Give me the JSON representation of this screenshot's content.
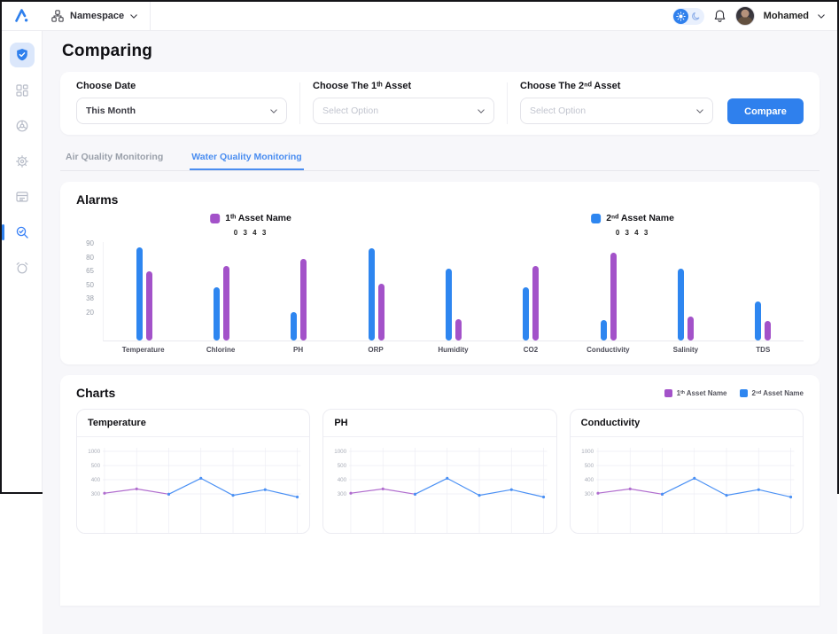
{
  "topbar": {
    "namespace_label": "Namespace",
    "user_name": "Mohamed"
  },
  "sidebar": {
    "items": [
      {
        "name": "security",
        "state": "highlighted"
      },
      {
        "name": "dashboard",
        "state": "default"
      },
      {
        "name": "hub",
        "state": "default"
      },
      {
        "name": "settings",
        "state": "default"
      },
      {
        "name": "assets",
        "state": "default"
      },
      {
        "name": "comparing",
        "state": "current"
      },
      {
        "name": "alarms",
        "state": "default"
      }
    ]
  },
  "page": {
    "title": "Comparing"
  },
  "form": {
    "date": {
      "label": "Choose Date",
      "value": "This Month"
    },
    "asset1": {
      "label": "Choose The 1ᵗʰ Asset",
      "placeholder": "Select Option"
    },
    "asset2": {
      "label": "Choose The 2ⁿᵈ Asset",
      "placeholder": "Select Option"
    },
    "compare_label": "Compare"
  },
  "tabs": [
    {
      "label": "Air Quality Monitoring",
      "active": false
    },
    {
      "label": "Water Quality Monitoring",
      "active": true
    }
  ],
  "alarms_section": {
    "title": "Alarms",
    "legend": [
      {
        "label": "1ᵗʰ Asset Name",
        "color": "#a352c9",
        "pos_pct": 24
      },
      {
        "label": "2ⁿᵈ Asset Name",
        "color": "#2e86f0",
        "pos_pct": 76.5
      }
    ],
    "annotations": [
      {
        "text": "0 3 4 3",
        "pos_pct": 24
      },
      {
        "text": "0 3 4 3",
        "pos_pct": 76.5
      }
    ]
  },
  "charts_section": {
    "title": "Charts",
    "legend": [
      {
        "label": "1ᵗʰ Asset Name",
        "color": "#a352c9"
      },
      {
        "label": "2ⁿᵈ Asset Name",
        "color": "#2e86f0"
      }
    ]
  },
  "colors": {
    "accent_blue": "#2f80ed",
    "bar_blue": "#2e86f0",
    "bar_purple": "#a352c9",
    "line_blue": "#4a90f4",
    "line_purple": "#b06cce"
  },
  "chart_data": [
    {
      "id": "alarms_bar",
      "type": "bar",
      "title": "Alarms",
      "categories": [
        "Temperature",
        "Chlorine",
        "PH",
        "ORP",
        "Humidity",
        "CO2",
        "Conductivity",
        "Salinity",
        "TDS"
      ],
      "y_ticks": [
        90,
        80,
        65,
        50,
        38,
        20
      ],
      "ylim": [
        0,
        100
      ],
      "value_unit": "relative-height-percent-of-plot",
      "series": [
        {
          "name": "2ⁿᵈ Asset Name",
          "color": "#2e86f0",
          "values": [
            95,
            54,
            29,
            94,
            73,
            54,
            21,
            73,
            40
          ]
        },
        {
          "name": "1ᵗʰ Asset Name",
          "color": "#a352c9",
          "values": [
            70,
            76,
            83,
            58,
            22,
            76,
            89,
            24,
            20
          ]
        }
      ],
      "legend_position": "top",
      "grid": false
    },
    {
      "id": "mini_line_charts",
      "type": "line",
      "titles": [
        "Temperature",
        "PH",
        "Conductivity"
      ],
      "y_ticks": [
        1000,
        500,
        400,
        300
      ],
      "x_columns": 7,
      "grid": true,
      "series": [
        {
          "name": "1ᵗʰ Asset Name",
          "color": "#b06cce",
          "start_x": 0,
          "values": [
            305,
            335,
            298
          ]
        },
        {
          "name": "2ⁿᵈ Asset Name",
          "color": "#4a90f4",
          "start_x": 2,
          "values": [
            298,
            410,
            290,
            330,
            278
          ]
        }
      ]
    }
  ]
}
